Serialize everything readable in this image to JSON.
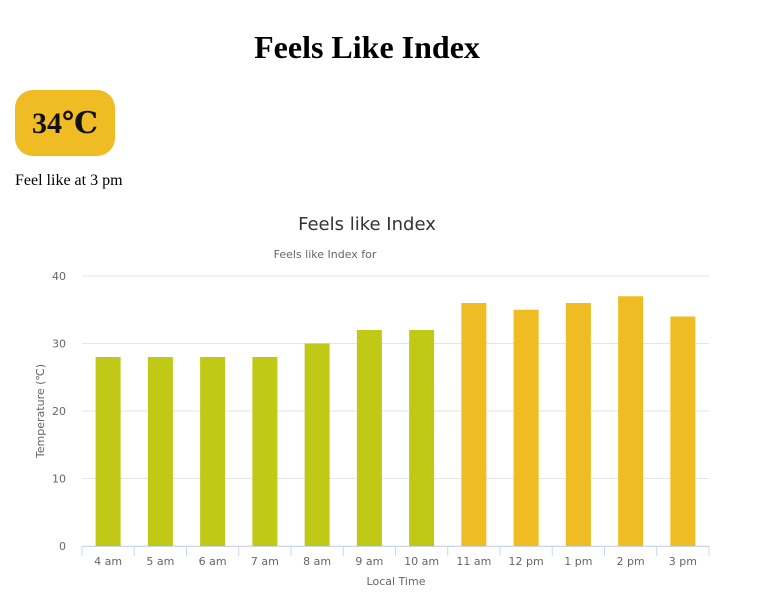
{
  "page": {
    "title": "Feels Like Index",
    "current_temp": "34℃",
    "caption": "Feel like at 3 pm",
    "badge_color": "#efbc23"
  },
  "chart_data": {
    "type": "bar",
    "title": "Feels like Index",
    "subtitle": "Feels like Index for",
    "xlabel": "Local Time",
    "ylabel": "Temperature (℃)",
    "ylim": [
      0,
      40
    ],
    "yticks": [
      0,
      10,
      20,
      30,
      40
    ],
    "grid": true,
    "categories": [
      "4 am",
      "5 am",
      "6 am",
      "7 am",
      "8 am",
      "9 am",
      "10 am",
      "11 am",
      "12 pm",
      "1 pm",
      "2 pm",
      "3 pm"
    ],
    "values": [
      28,
      28,
      28,
      28,
      30,
      32,
      32,
      36,
      35,
      36,
      37,
      34
    ],
    "colors": {
      "below_threshold": "#bfc916",
      "above_threshold": "#efbc23"
    },
    "color_threshold": 34
  }
}
